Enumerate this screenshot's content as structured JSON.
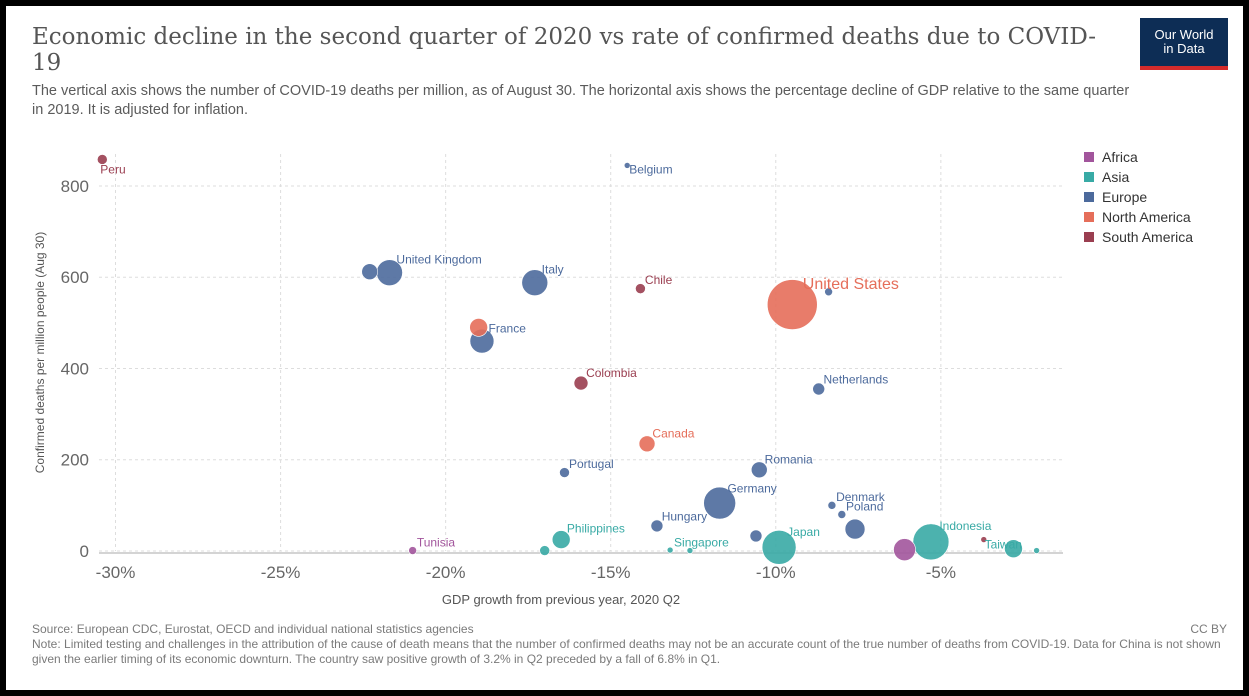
{
  "header": {
    "title": "Economic decline in the second quarter of 2020 vs rate of confirmed deaths due to COVID-19",
    "subtitle": "The vertical axis shows the number of COVID-19 deaths per million, as of August 30. The horizontal axis shows the percentage decline of GDP relative to the same quarter in 2019. It is adjusted for inflation.",
    "logo_line1": "Our World",
    "logo_line2": "in Data"
  },
  "footer": {
    "source": "Source: European CDC, Eurostat, OECD and individual national statistics agencies",
    "license": "CC BY",
    "note": "Note: Limited testing and challenges in the attribution of the cause of death means that the number of confirmed deaths may not be an accurate count of the true number of deaths from COVID-19. Data for China is not shown given the earlier timing of its economic downturn. The country saw positive growth of 3.2% in Q2 preceded by a fall of 6.8% in Q1."
  },
  "colors": {
    "Africa": "#a2559c",
    "Asia": "#38aaa5",
    "Europe": "#4c6a9c",
    "North America": "#e56e5a",
    "South America": "#9a3e50"
  },
  "chart_data": {
    "type": "scatter",
    "title": "Economic decline in the second quarter of 2020 vs rate of confirmed deaths due to COVID-19",
    "xlabel": "GDP growth from previous year, 2020 Q2",
    "ylabel": "Confirmed deaths per million people (Aug 30)",
    "xlim": [
      -30.5,
      -1.3
    ],
    "ylim": [
      0,
      870
    ],
    "xticks": [
      -30,
      -25,
      -20,
      -15,
      -10,
      -5
    ],
    "xtick_labels": [
      "-30%",
      "-25%",
      "-20%",
      "-15%",
      "-10%",
      "-5%"
    ],
    "yticks": [
      0,
      200,
      400,
      600,
      800
    ],
    "ytick_labels": [
      "0",
      "200",
      "400",
      "600",
      "800"
    ],
    "grid": true,
    "legend": {
      "position": "right",
      "entries": [
        "Africa",
        "Asia",
        "Europe",
        "North America",
        "South America"
      ]
    },
    "points": [
      {
        "label": "Peru",
        "region": "South America",
        "x": -30.4,
        "y": 858,
        "r": 5
      },
      {
        "label": "Belgium",
        "region": "Europe",
        "x": -14.5,
        "y": 845,
        "r": 3
      },
      {
        "label": "United Kingdom",
        "region": "Europe",
        "x": -21.7,
        "y": 610,
        "r": 13
      },
      {
        "label": "",
        "region": "Europe",
        "x": -22.3,
        "y": 612,
        "r": 8
      },
      {
        "label": "Italy",
        "region": "Europe",
        "x": -17.3,
        "y": 588,
        "r": 13
      },
      {
        "label": "Chile",
        "region": "South America",
        "x": -14.1,
        "y": 575,
        "r": 5
      },
      {
        "label": "United States",
        "region": "North America",
        "x": -9.5,
        "y": 540,
        "r": 25
      },
      {
        "label": "",
        "region": "Europe",
        "x": -8.4,
        "y": 568,
        "r": 4
      },
      {
        "label": "France",
        "region": "Europe",
        "x": -18.9,
        "y": 460,
        "r": 12
      },
      {
        "label": "",
        "region": "North America",
        "x": -19.0,
        "y": 490,
        "r": 9
      },
      {
        "label": "Colombia",
        "region": "South America",
        "x": -15.9,
        "y": 368,
        "r": 7
      },
      {
        "label": "Netherlands",
        "region": "Europe",
        "x": -8.7,
        "y": 355,
        "r": 6
      },
      {
        "label": "Canada",
        "region": "North America",
        "x": -13.9,
        "y": 235,
        "r": 8
      },
      {
        "label": "Portugal",
        "region": "Europe",
        "x": -16.4,
        "y": 172,
        "r": 5
      },
      {
        "label": "Romania",
        "region": "Europe",
        "x": -10.5,
        "y": 178,
        "r": 8
      },
      {
        "label": "Germany",
        "region": "Europe",
        "x": -11.7,
        "y": 105,
        "r": 16
      },
      {
        "label": "Denmark",
        "region": "Europe",
        "x": -8.3,
        "y": 100,
        "r": 4
      },
      {
        "label": "Poland",
        "region": "Europe",
        "x": -8.0,
        "y": 80,
        "r": 4
      },
      {
        "label": "",
        "region": "Europe",
        "x": -7.6,
        "y": 48,
        "r": 10
      },
      {
        "label": "Hungary",
        "region": "Europe",
        "x": -13.6,
        "y": 55,
        "r": 6
      },
      {
        "label": "Philippines",
        "region": "Asia",
        "x": -16.5,
        "y": 25,
        "r": 9
      },
      {
        "label": "Singapore",
        "region": "Asia",
        "x": -13.2,
        "y": 2,
        "r": 3
      },
      {
        "label": "Japan",
        "region": "Asia",
        "x": -9.9,
        "y": 8,
        "r": 17
      },
      {
        "label": "",
        "region": "Europe",
        "x": -10.6,
        "y": 33,
        "r": 6
      },
      {
        "label": "Indonesia",
        "region": "Asia",
        "x": -5.3,
        "y": 20,
        "r": 18
      },
      {
        "label": "",
        "region": "Africa",
        "x": -6.1,
        "y": 3,
        "r": 11
      },
      {
        "label": "",
        "region": "South America",
        "x": -3.7,
        "y": 25,
        "r": 3
      },
      {
        "label": "Taiwan",
        "region": "Asia",
        "x": -2.1,
        "y": 1,
        "r": 3
      },
      {
        "label": "",
        "region": "Asia",
        "x": -2.8,
        "y": 5,
        "r": 9
      },
      {
        "label": "Tunisia",
        "region": "Africa",
        "x": -21.0,
        "y": 1,
        "r": 4
      },
      {
        "label": "",
        "region": "Asia",
        "x": -17.0,
        "y": 1,
        "r": 5
      },
      {
        "label": "",
        "region": "Asia",
        "x": -12.6,
        "y": 1,
        "r": 3
      }
    ]
  }
}
